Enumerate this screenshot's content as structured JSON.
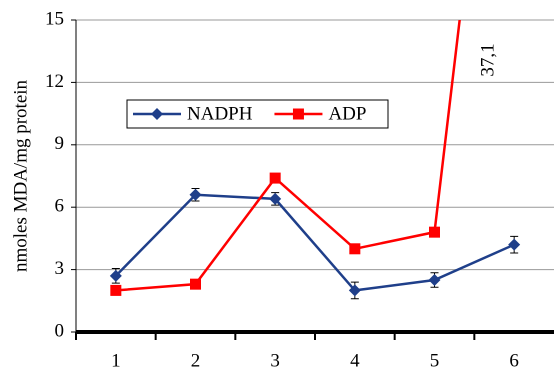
{
  "chart_data": {
    "type": "line",
    "y_label": "nmoles MDA/mg protein",
    "categories": [
      "1",
      "2",
      "3",
      "4",
      "5",
      "6"
    ],
    "series": [
      {
        "name": "NADPH",
        "color": "#1f3f8a",
        "marker": "diamond",
        "values": [
          2.7,
          6.6,
          6.4,
          2.0,
          2.5,
          4.2
        ],
        "errors": [
          0.35,
          0.3,
          0.3,
          0.4,
          0.35,
          0.4
        ]
      },
      {
        "name": "ADP",
        "color": "#ff0000",
        "marker": "square",
        "values": [
          2.0,
          2.3,
          7.4,
          4.0,
          4.8,
          37.1
        ],
        "value_labels": [
          null,
          null,
          null,
          null,
          null,
          "37,1"
        ]
      }
    ],
    "ylim": [
      0,
      15
    ],
    "yticks": [
      0,
      3,
      6,
      9,
      12,
      15
    ],
    "grid": true,
    "legend": "upper left"
  }
}
